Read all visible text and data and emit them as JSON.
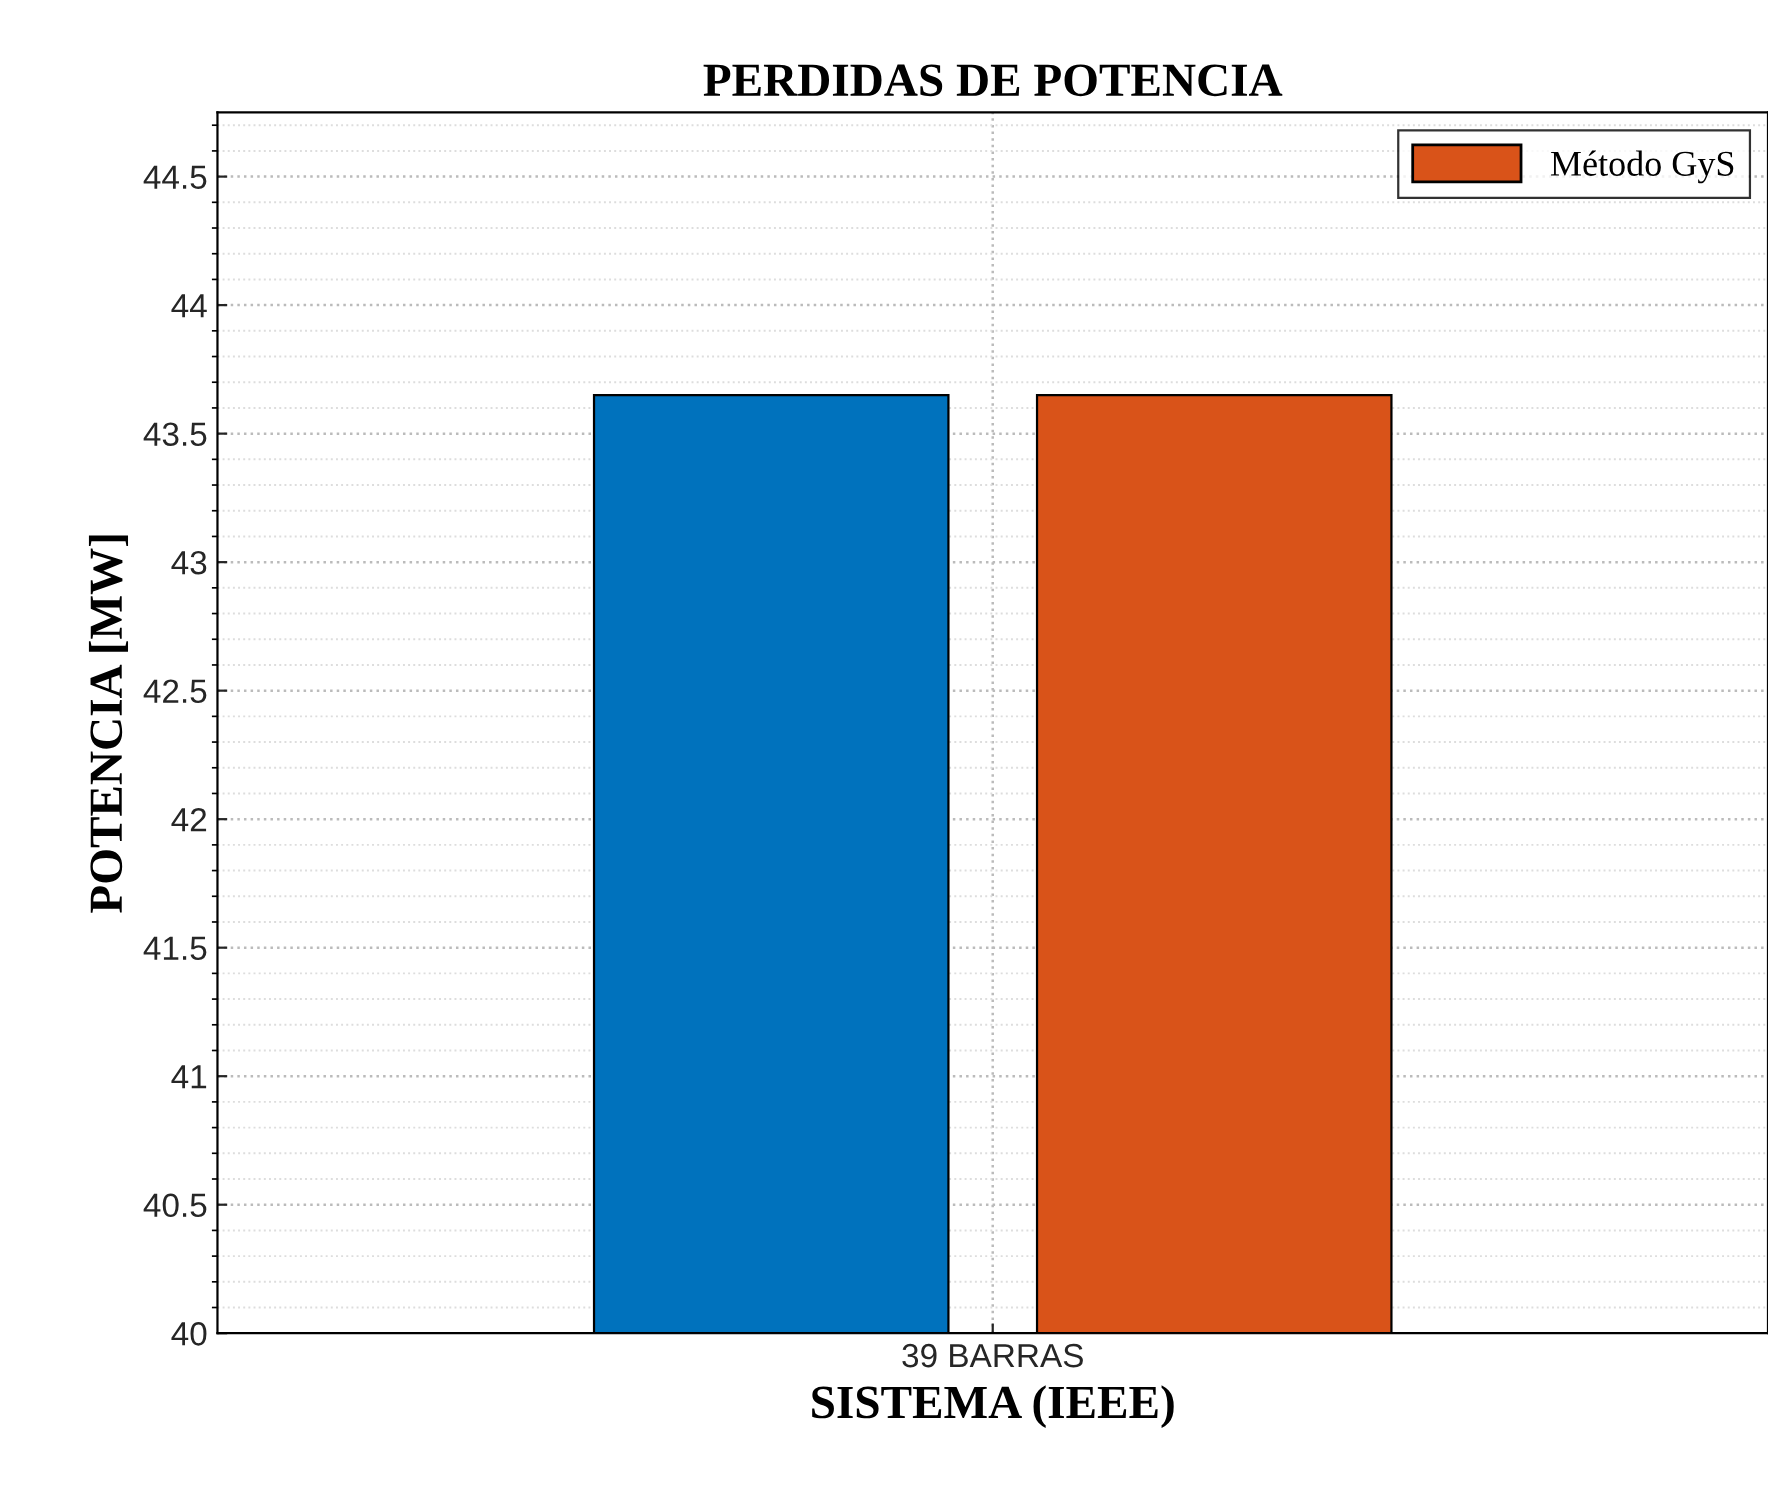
{
  "chart_data": {
    "type": "bar",
    "title": "PERDIDAS DE POTENCIA",
    "xlabel": "SISTEMA (IEEE)",
    "ylabel": "POTENCIA [MW]",
    "categories": [
      "39 BARRAS"
    ],
    "series": [
      {
        "color": "#0072bd",
        "values": [
          43.65
        ]
      },
      {
        "name": "Método GyS",
        "color": "#d95319",
        "values": [
          43.65
        ]
      }
    ],
    "ylim": [
      40,
      44.75
    ],
    "yticks": [
      40,
      40.5,
      41,
      41.5,
      42,
      42.5,
      43,
      43.5,
      44,
      44.5
    ],
    "grid": true,
    "legend": "top right"
  }
}
